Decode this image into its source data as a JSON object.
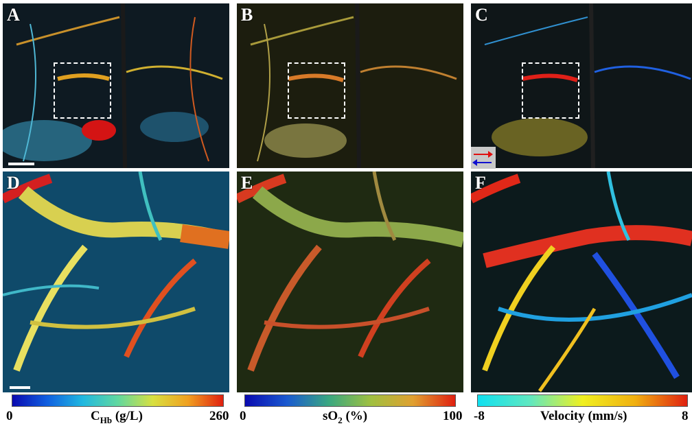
{
  "panels": {
    "A": {
      "label": "A"
    },
    "B": {
      "label": "B"
    },
    "C": {
      "label": "C"
    },
    "D": {
      "label": "D"
    },
    "E": {
      "label": "E"
    },
    "F": {
      "label": "F"
    }
  },
  "colorbars": {
    "chb": {
      "min": "0",
      "max": "260",
      "title_main": "C",
      "title_sub": "Hb",
      "title_unit": " (g/L)"
    },
    "so2": {
      "min": "0",
      "max": "100",
      "title_main": "sO",
      "title_sub": "2",
      "title_unit": " (%)"
    },
    "velocity": {
      "min": "-8",
      "max": "8",
      "title": "Velocity (mm/s)"
    }
  },
  "colors": {
    "flow_toward": "#e01010",
    "flow_away": "#1010d0"
  }
}
